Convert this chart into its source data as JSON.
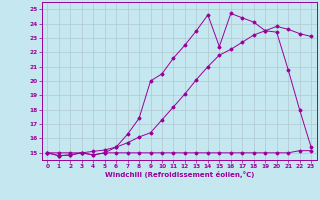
{
  "xlabel": "Windchill (Refroidissement éolien,°C)",
  "xlim": [
    -0.5,
    23.5
  ],
  "ylim": [
    14.5,
    25.5
  ],
  "yticks": [
    15,
    16,
    17,
    18,
    19,
    20,
    21,
    22,
    23,
    24,
    25
  ],
  "xticks": [
    0,
    1,
    2,
    3,
    4,
    5,
    6,
    7,
    8,
    9,
    10,
    11,
    12,
    13,
    14,
    15,
    16,
    17,
    18,
    19,
    20,
    21,
    22,
    23
  ],
  "bg_color": "#c5e8f0",
  "line_color": "#990099",
  "grid_color": "#b0c8d0",
  "line1_x": [
    0,
    1,
    2,
    3,
    4,
    5,
    6,
    7,
    8,
    9,
    10,
    11,
    12,
    13,
    14,
    15,
    16,
    17,
    18,
    19,
    20,
    21,
    22,
    23
  ],
  "line1_y": [
    15.0,
    14.8,
    14.85,
    15.0,
    14.85,
    15.0,
    15.0,
    15.0,
    15.0,
    15.0,
    15.0,
    15.0,
    15.0,
    15.0,
    15.0,
    15.0,
    15.0,
    15.0,
    15.0,
    15.0,
    15.0,
    15.0,
    15.15,
    15.15
  ],
  "line2_x": [
    0,
    1,
    2,
    3,
    4,
    5,
    6,
    7,
    8,
    9,
    10,
    11,
    12,
    13,
    14,
    15,
    16,
    17,
    18,
    19,
    20,
    21,
    22,
    23
  ],
  "line2_y": [
    15.0,
    15.0,
    15.0,
    15.0,
    15.1,
    15.2,
    15.4,
    15.7,
    16.1,
    16.4,
    17.3,
    18.2,
    19.1,
    20.1,
    21.0,
    21.8,
    22.2,
    22.7,
    23.2,
    23.5,
    23.8,
    23.6,
    23.3,
    23.1
  ],
  "line3_x": [
    0,
    1,
    2,
    3,
    4,
    5,
    6,
    7,
    8,
    9,
    10,
    11,
    12,
    13,
    14,
    15,
    16,
    17,
    18,
    19,
    20,
    21,
    22,
    23
  ],
  "line3_y": [
    15.0,
    14.8,
    14.85,
    15.0,
    14.85,
    15.0,
    15.4,
    16.3,
    17.4,
    20.0,
    20.5,
    21.6,
    22.5,
    23.5,
    24.6,
    22.4,
    24.7,
    24.4,
    24.1,
    23.5,
    23.4,
    20.8,
    18.0,
    15.4
  ]
}
